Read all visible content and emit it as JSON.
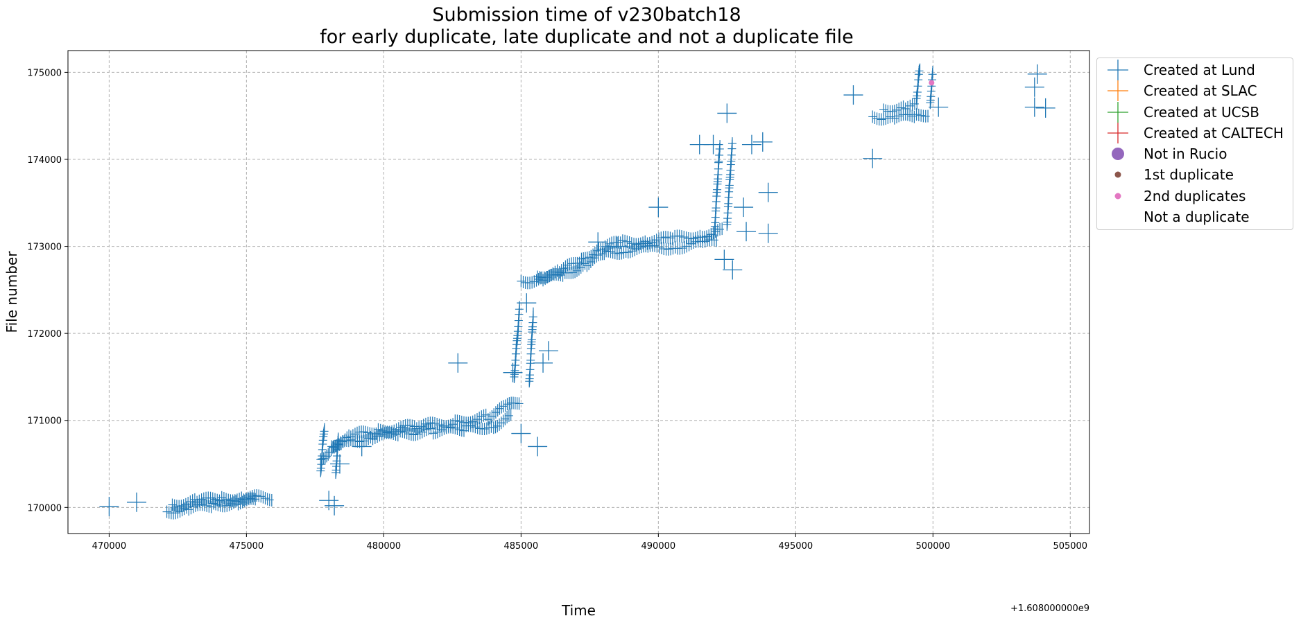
{
  "chart_data": {
    "type": "scatter",
    "title": "Submission time of v230batch18",
    "subtitle": "for early duplicate, late duplicate and not a duplicate file",
    "xlabel": "Time",
    "ylabel": "File number",
    "x_offset_label": "+1.608000000e9",
    "xlim": [
      468500,
      505700
    ],
    "ylim": [
      169700,
      175250
    ],
    "x_ticks": [
      470000,
      475000,
      480000,
      485000,
      490000,
      495000,
      500000,
      505000
    ],
    "y_ticks": [
      170000,
      171000,
      172000,
      173000,
      174000,
      175000
    ],
    "x_tick_labels": [
      "470000",
      "475000",
      "480000",
      "485000",
      "490000",
      "495000",
      "500000",
      "505000"
    ],
    "y_tick_labels": [
      "170000",
      "171000",
      "172000",
      "173000",
      "174000",
      "175000"
    ],
    "grid": true,
    "legend_placement": "outside-upper-right",
    "series": [
      {
        "name": "Created at Lund",
        "marker": "plus",
        "color": "#1f77b4",
        "segments": [
          [
            [
              472100,
              169950
            ],
            [
              472900,
              169985
            ],
            [
              473800,
              170030
            ],
            [
              474700,
              170060
            ],
            [
              475400,
              170080
            ]
          ],
          [
            [
              472300,
              170030
            ],
            [
              473200,
              170070
            ],
            [
              474100,
              170100
            ],
            [
              474900,
              170110
            ],
            [
              476000,
              170110
            ]
          ],
          [
            [
              477700,
              170550
            ],
            [
              478200,
              170700
            ],
            [
              478800,
              170760
            ],
            [
              479600,
              170810
            ],
            [
              480600,
              170850
            ],
            [
              481800,
              170880
            ],
            [
              483000,
              170910
            ],
            [
              484000,
              170940
            ],
            [
              484700,
              171050
            ]
          ],
          [
            [
              478100,
              170700
            ],
            [
              478800,
              170820
            ],
            [
              479800,
              170880
            ],
            [
              481200,
              170930
            ],
            [
              482600,
              170970
            ],
            [
              483800,
              171040
            ],
            [
              484500,
              171160
            ],
            [
              485000,
              171220
            ]
          ],
          [
            [
              477700,
              170420
            ],
            [
              477750,
              170600
            ],
            [
              477800,
              170800
            ],
            [
              477850,
              170950
            ]
          ],
          [
            [
              478250,
              170400
            ],
            [
              478300,
              170600
            ],
            [
              478350,
              170800
            ]
          ],
          [
            [
              484750,
              171500
            ],
            [
              484800,
              171700
            ],
            [
              484850,
              171900
            ],
            [
              484900,
              172100
            ],
            [
              484950,
              172300
            ]
          ],
          [
            [
              485300,
              171450
            ],
            [
              485350,
              171700
            ],
            [
              485400,
              172000
            ],
            [
              485450,
              172250
            ]
          ],
          [
            [
              485000,
              172600
            ],
            [
              485800,
              172620
            ],
            [
              486600,
              172680
            ],
            [
              487400,
              172800
            ],
            [
              488100,
              172920
            ],
            [
              488900,
              172960
            ],
            [
              489700,
              172980
            ],
            [
              490700,
              173000
            ],
            [
              491700,
              173040
            ],
            [
              492200,
              173060
            ]
          ],
          [
            [
              485600,
              172650
            ],
            [
              486400,
              172710
            ],
            [
              487200,
              172840
            ],
            [
              487900,
              172990
            ],
            [
              488700,
              173040
            ],
            [
              489600,
              173060
            ],
            [
              490600,
              173090
            ],
            [
              491600,
              173130
            ],
            [
              492400,
              173180
            ]
          ],
          [
            [
              492050,
              173200
            ],
            [
              492100,
              173450
            ],
            [
              492150,
              173700
            ],
            [
              492200,
              174000
            ],
            [
              492250,
              174150
            ]
          ],
          [
            [
              492500,
              173250
            ],
            [
              492550,
              173500
            ],
            [
              492600,
              173750
            ],
            [
              492650,
              174000
            ],
            [
              492700,
              174180
            ]
          ],
          [
            [
              497800,
              174490
            ],
            [
              498600,
              174480
            ],
            [
              499400,
              174500
            ],
            [
              499900,
              174530
            ]
          ],
          [
            [
              498200,
              174570
            ],
            [
              499000,
              174590
            ],
            [
              499500,
              174620
            ]
          ],
          [
            [
              499400,
              174700
            ],
            [
              499450,
              174850
            ],
            [
              499500,
              175000
            ],
            [
              499550,
              175050
            ]
          ],
          [
            [
              499900,
              174650
            ],
            [
              499950,
              174850
            ],
            [
              500000,
              175000
            ]
          ]
        ],
        "points": [
          [
            470000,
            170010
          ],
          [
            471000,
            170060
          ],
          [
            478000,
            170080
          ],
          [
            478200,
            170020
          ],
          [
            478400,
            170500
          ],
          [
            479200,
            170700
          ],
          [
            485000,
            170850
          ],
          [
            485600,
            170700
          ],
          [
            484700,
            171550
          ],
          [
            485800,
            171660
          ],
          [
            482700,
            171660
          ],
          [
            485200,
            172350
          ],
          [
            486000,
            171800
          ],
          [
            487800,
            173050
          ],
          [
            488500,
            173000
          ],
          [
            490000,
            173450
          ],
          [
            491500,
            174170
          ],
          [
            492000,
            174170
          ],
          [
            492500,
            174530
          ],
          [
            492400,
            172850
          ],
          [
            492700,
            172730
          ],
          [
            493100,
            173450
          ],
          [
            493200,
            173170
          ],
          [
            493400,
            174170
          ],
          [
            494000,
            173620
          ],
          [
            494000,
            173150
          ],
          [
            493800,
            174200
          ],
          [
            497100,
            174740
          ],
          [
            497800,
            174010
          ],
          [
            500200,
            174600
          ],
          [
            503800,
            174980
          ],
          [
            503700,
            174830
          ],
          [
            503700,
            174600
          ],
          [
            504100,
            174590
          ]
        ]
      },
      {
        "name": "Created at SLAC",
        "marker": "plus",
        "color": "#ff7f0e",
        "points": []
      },
      {
        "name": "Created at UCSB",
        "marker": "plus",
        "color": "#2ca02c",
        "points": []
      },
      {
        "name": "Created at CALTECH",
        "marker": "plus",
        "color": "#d62728",
        "points": []
      },
      {
        "name": "Not in Rucio",
        "marker": "circle-large",
        "color": "#9467bd",
        "points": []
      },
      {
        "name": "1st duplicate",
        "marker": "circle-small",
        "color": "#8c564b",
        "points": []
      },
      {
        "name": "2nd duplicates",
        "marker": "circle-small",
        "color": "#e377c2",
        "points": [
          [
            499950,
            174880
          ]
        ]
      },
      {
        "name": "Not a duplicate",
        "marker": "none",
        "color": "#ffffff",
        "points": []
      }
    ]
  }
}
